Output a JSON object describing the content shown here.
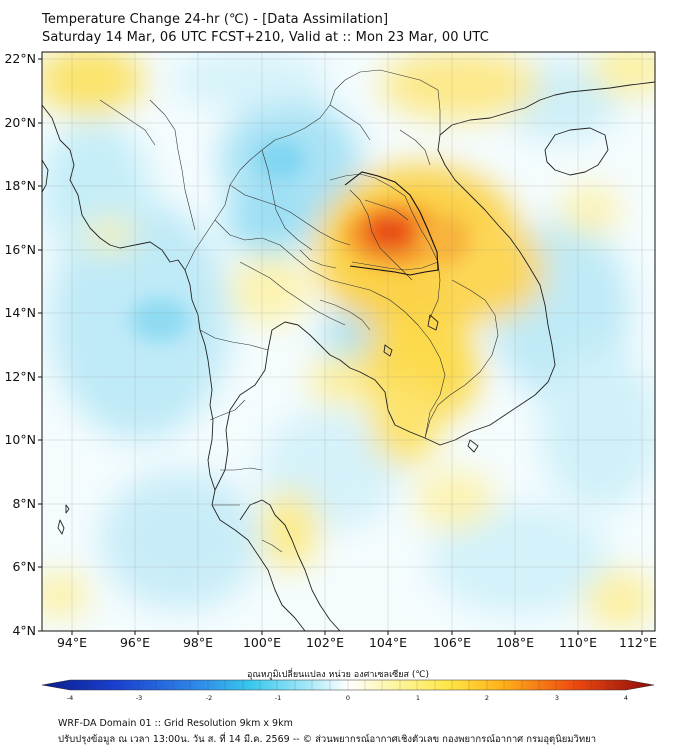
{
  "header": {
    "title_line1": "Temperature Change 24-hr (℃) - [Data Assimilation]",
    "title_line2": "Saturday 14 Mar, 06 UTC FCST+210, Valid at :: Mon 23 Mar, 00 UTC"
  },
  "map": {
    "lat_labels": [
      "22°N",
      "20°N",
      "18°N",
      "16°N",
      "14°N",
      "12°N",
      "10°N",
      "8°N",
      "6°N",
      "4°N"
    ],
    "lon_labels": [
      "94°E",
      "96°E",
      "98°E",
      "100°E",
      "102°E",
      "104°E",
      "106°E",
      "108°E",
      "110°E",
      "112°E"
    ],
    "extent": {
      "lon_min": 93.0,
      "lon_max": 112.4,
      "lat_min": 4.0,
      "lat_max": 22.2
    },
    "warm_centers": [
      {
        "name": "northeast-thailand-max",
        "lon": 104.2,
        "lat": 16.5,
        "value": 3.0
      },
      {
        "name": "central-laos",
        "lon": 105.5,
        "lat": 16.0,
        "value": 2.0
      },
      {
        "name": "cambodia",
        "lon": 105.2,
        "lat": 12.6,
        "value": 1.5
      },
      {
        "name": "gulf-north",
        "lon": 102.6,
        "lat": 12.0,
        "value": 1.0
      },
      {
        "name": "myanmar-north",
        "lon": 94.0,
        "lat": 21.0,
        "value": 1.2
      },
      {
        "name": "north-vietnam",
        "lon": 106.0,
        "lat": 21.0,
        "value": 1.2
      },
      {
        "name": "malay-peninsula",
        "lon": 100.5,
        "lat": 7.5,
        "value": 0.8
      }
    ],
    "cool_centers": [
      {
        "name": "northern-thailand",
        "lon": 100.5,
        "lat": 19.0,
        "value": -1.2
      },
      {
        "name": "andaman-sea",
        "lon": 96.0,
        "lat": 13.0,
        "value": -1.0
      },
      {
        "name": "south-china-sea",
        "lon": 109.5,
        "lat": 13.5,
        "value": -1.0
      },
      {
        "name": "bay-of-bengal",
        "lon": 94.5,
        "lat": 17.0,
        "value": -0.8
      }
    ]
  },
  "colorbar": {
    "title": "อุณหภูมิเปลี่ยนแปลง หน่วย องศาเซลเซียส (℃)",
    "ticks": [
      "-4",
      "-3",
      "-2",
      "-1",
      "0",
      "1",
      "2",
      "3",
      "4"
    ],
    "min": -4,
    "max": 4
  },
  "footer": {
    "line1": "WRF-DA Domain 01 :: Grid Resolution 9km x 9km",
    "line2": "ปรับปรุงข้อมูล ณ เวลา 13:00น. วัน ส. ที่ 14 มี.ค. 2569 -- © ส่วนพยากรณ์อากาศเชิงตัวเลข กองพยากรณ์อากาศ กรมอุตุนิยมวิทยา"
  }
}
